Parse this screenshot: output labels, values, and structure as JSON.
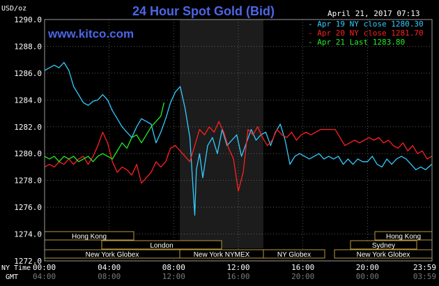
{
  "chart_data": {
    "type": "line",
    "title": "24 Hour Spot Gold (Bid)",
    "ylabel": "USD/oz",
    "datestamp": "April 21, 2017 07:13",
    "website": "www.kitco.com",
    "ylim": [
      1272.0,
      1290.0
    ],
    "yticks": [
      "1290.0",
      "1288.0",
      "1286.0",
      "1284.0",
      "1282.0",
      "1280.0",
      "1278.0",
      "1276.0",
      "1274.0",
      "1272.0"
    ],
    "x_row_label_1": "NY Time",
    "x_row_label_2": "GMT",
    "ny_ticks": [
      "00:00",
      "04:00",
      "08:00",
      "12:00",
      "16:00",
      "20:00",
      "23:59"
    ],
    "gmt_ticks": [
      "04:00",
      "08:00",
      "12:00",
      "16:00",
      "20:00",
      "00:00",
      "03:59"
    ],
    "legend": [
      {
        "label": "Apr 19 NY close 1280.30",
        "color": "#33ccff"
      },
      {
        "label": "Apr 20 NY close 1281.70",
        "color": "#ff2020"
      },
      {
        "label": "Apr 21 Last 1283.80",
        "color": "#22ee22"
      }
    ],
    "sessions": [
      {
        "label": "Hong Kong",
        "row": 0
      },
      {
        "label": "London",
        "row": 1
      },
      {
        "label": "New York Globex",
        "row": 2
      },
      {
        "label": "New York NYMEX",
        "row": 2
      },
      {
        "label": "NY Globex",
        "row": 2
      },
      {
        "label": "Hong Kong",
        "row": 0
      },
      {
        "label": "Sydney",
        "row": 1
      },
      {
        "label": "New York Globex",
        "row": 2
      }
    ],
    "series": [
      {
        "name": "Apr 19",
        "color": "#33ccff",
        "x": [
          0,
          0.3,
          0.6,
          0.9,
          1.2,
          1.5,
          1.8,
          2.1,
          2.4,
          2.7,
          3.0,
          3.3,
          3.6,
          3.9,
          4.2,
          4.5,
          4.8,
          5.1,
          5.4,
          5.7,
          6.0,
          6.3,
          6.6,
          6.9,
          7.2,
          7.5,
          7.8,
          8.1,
          8.4,
          8.7,
          9.0,
          9.3,
          9.4,
          9.6,
          9.8,
          10.1,
          10.4,
          10.7,
          11.0,
          11.3,
          11.6,
          11.9,
          12.2,
          12.5,
          12.8,
          13.1,
          13.4,
          13.7,
          14.0,
          14.3,
          14.6,
          14.9,
          15.2,
          15.5,
          15.8,
          16.1,
          16.4,
          16.7,
          17.0,
          17.3,
          17.6,
          17.9,
          18.2,
          18.5,
          18.8,
          19.1,
          19.4,
          19.7,
          20.0,
          20.3,
          20.6,
          20.9,
          21.2,
          21.5,
          21.8,
          22.1,
          22.4,
          22.7,
          23.0,
          23.3,
          23.6,
          23.98
        ],
        "values": [
          1286.2,
          1286.4,
          1286.6,
          1286.4,
          1286.8,
          1286.2,
          1285.0,
          1284.4,
          1283.8,
          1283.6,
          1283.9,
          1284.0,
          1284.4,
          1284.0,
          1283.2,
          1282.6,
          1282.0,
          1281.6,
          1281.2,
          1282.0,
          1282.6,
          1282.4,
          1282.2,
          1280.8,
          1281.6,
          1282.6,
          1283.8,
          1284.6,
          1285.0,
          1283.4,
          1281.2,
          1275.4,
          1278.8,
          1280.0,
          1278.2,
          1280.6,
          1281.2,
          1280.0,
          1281.8,
          1280.6,
          1281.0,
          1281.4,
          1279.8,
          1280.8,
          1281.8,
          1281.0,
          1281.4,
          1281.6,
          1280.6,
          1281.6,
          1282.2,
          1281.0,
          1279.2,
          1279.8,
          1280.0,
          1279.8,
          1279.6,
          1279.8,
          1280.0,
          1279.6,
          1279.8,
          1279.6,
          1279.8,
          1279.2,
          1279.6,
          1279.2,
          1279.6,
          1279.4,
          1279.4,
          1279.8,
          1279.2,
          1279.0,
          1279.6,
          1279.2,
          1279.6,
          1279.8,
          1279.6,
          1279.2,
          1278.8,
          1279.0,
          1278.8,
          1279.2
        ]
      },
      {
        "name": "Apr 20",
        "color": "#ff2020",
        "x": [
          0,
          0.3,
          0.6,
          0.9,
          1.2,
          1.5,
          1.8,
          2.1,
          2.4,
          2.7,
          3.0,
          3.3,
          3.6,
          3.9,
          4.2,
          4.5,
          4.8,
          5.1,
          5.4,
          5.7,
          6.0,
          6.3,
          6.6,
          6.9,
          7.2,
          7.5,
          7.8,
          8.1,
          8.4,
          8.7,
          9.0,
          9.3,
          9.6,
          9.9,
          10.2,
          10.5,
          10.8,
          11.1,
          11.4,
          11.7,
          12.0,
          12.3,
          12.6,
          12.9,
          13.2,
          13.5,
          13.8,
          14.1,
          14.4,
          14.7,
          15.0,
          15.3,
          15.6,
          15.9,
          16.2,
          16.5,
          16.8,
          17.1,
          17.4,
          17.7,
          18.0,
          18.3,
          18.6,
          18.9,
          19.2,
          19.5,
          19.8,
          20.1,
          20.4,
          20.7,
          21.0,
          21.3,
          21.6,
          21.9,
          22.2,
          22.5,
          22.8,
          23.1,
          23.4,
          23.7,
          23.98
        ],
        "values": [
          1279.0,
          1279.2,
          1279.0,
          1279.4,
          1279.2,
          1279.6,
          1279.2,
          1279.6,
          1279.8,
          1279.2,
          1279.8,
          1280.6,
          1281.6,
          1280.8,
          1279.4,
          1278.6,
          1279.0,
          1278.8,
          1278.4,
          1279.2,
          1277.8,
          1278.2,
          1278.6,
          1279.4,
          1279.0,
          1279.4,
          1280.4,
          1280.6,
          1280.2,
          1279.8,
          1279.4,
          1280.6,
          1281.8,
          1281.4,
          1282.0,
          1281.6,
          1282.4,
          1281.6,
          1280.4,
          1279.6,
          1277.2,
          1278.6,
          1281.8,
          1281.4,
          1282.0,
          1281.2,
          1280.6,
          1281.0,
          1281.8,
          1281.4,
          1281.2,
          1281.6,
          1281.0,
          1281.4,
          1281.6,
          1281.4,
          1281.6,
          1281.8,
          1281.8,
          1281.8,
          1281.8,
          1281.2,
          1280.6,
          1280.8,
          1281.0,
          1280.8,
          1281.0,
          1281.2,
          1281.0,
          1281.2,
          1280.8,
          1281.0,
          1280.6,
          1280.4,
          1280.8,
          1280.2,
          1280.6,
          1280.0,
          1280.2,
          1279.6,
          1279.8
        ]
      },
      {
        "name": "Apr 21",
        "color": "#22ee22",
        "x": [
          0,
          0.3,
          0.6,
          0.9,
          1.2,
          1.5,
          1.8,
          2.1,
          2.4,
          2.7,
          3.0,
          3.3,
          3.6,
          3.9,
          4.2,
          4.5,
          4.8,
          5.1,
          5.4,
          5.7,
          6.0,
          6.3,
          6.6,
          6.9,
          7.2,
          7.4
        ],
        "values": [
          1279.8,
          1279.6,
          1279.8,
          1279.4,
          1279.8,
          1279.6,
          1279.8,
          1279.4,
          1279.6,
          1279.8,
          1279.4,
          1279.8,
          1280.0,
          1279.8,
          1279.6,
          1280.2,
          1280.8,
          1280.4,
          1281.2,
          1281.4,
          1280.8,
          1281.4,
          1282.0,
          1282.4,
          1282.8,
          1283.8
        ]
      }
    ]
  }
}
